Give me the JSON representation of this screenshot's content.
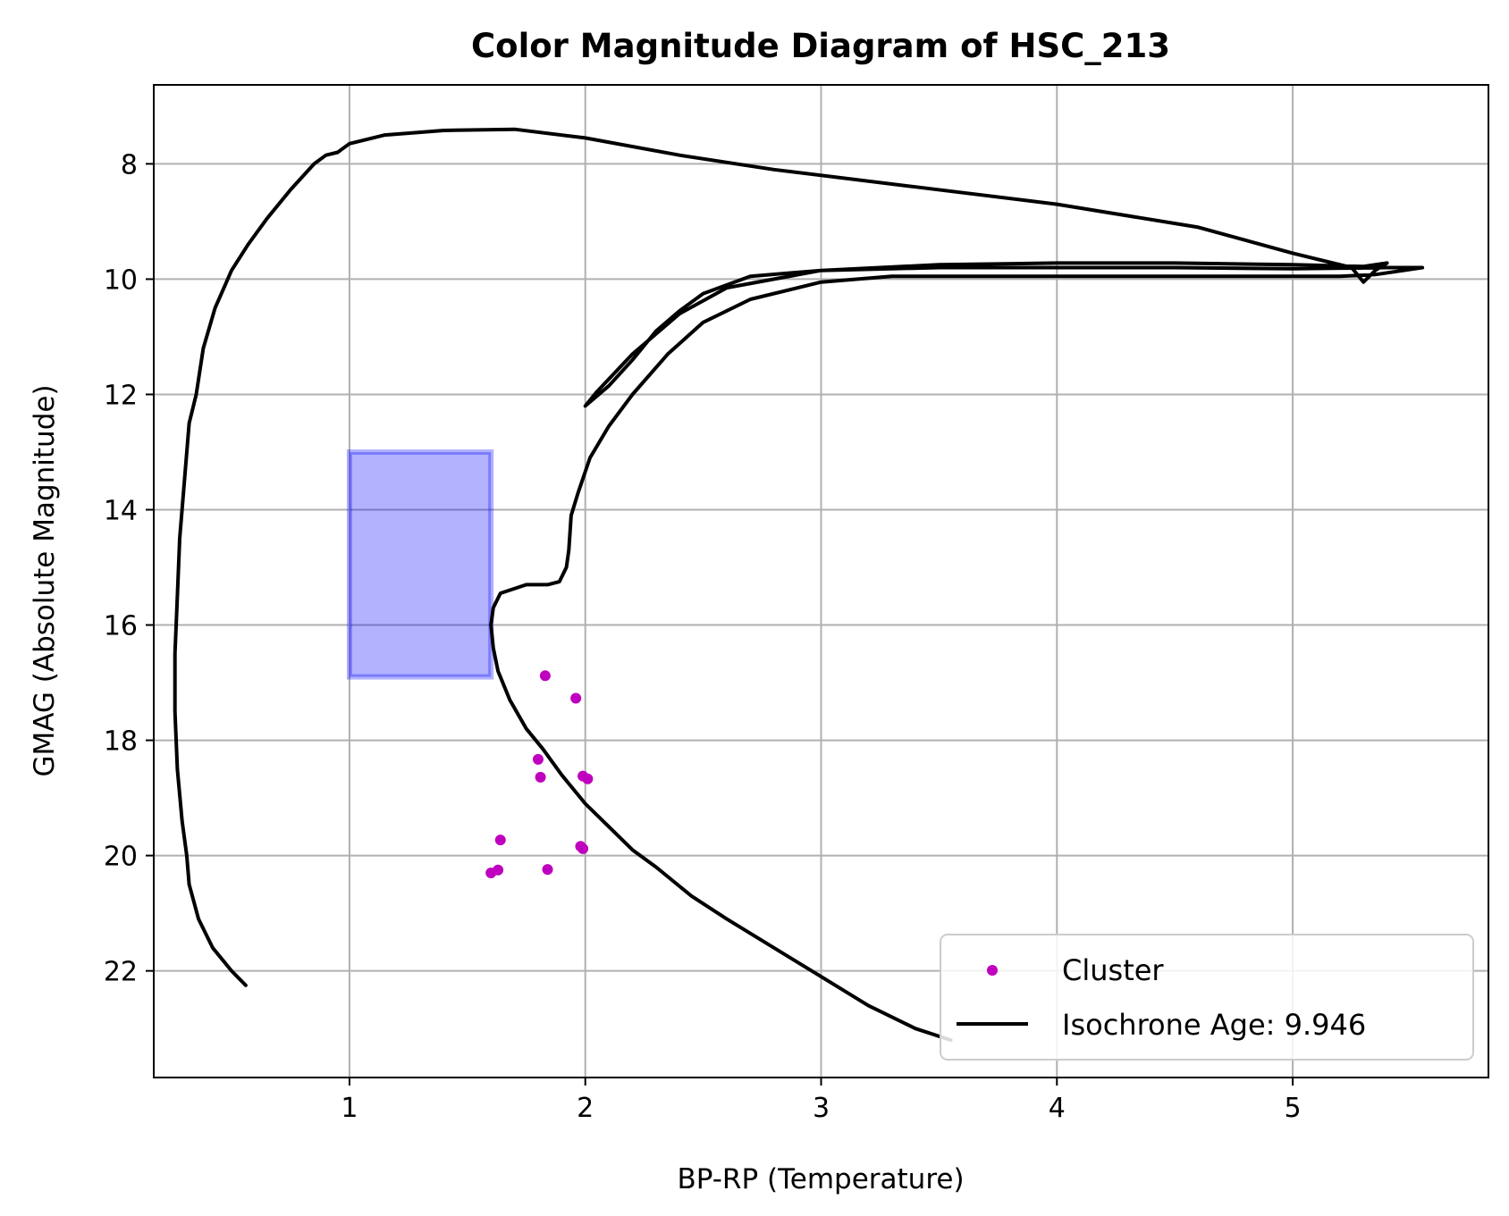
{
  "chart_data": {
    "type": "scatter",
    "title": "Color Magnitude Diagram of HSC_213",
    "xlabel": "BP-RP (Temperature)",
    "ylabel": "GMAG (Absolute Magnitude)",
    "xlim": [
      0.17,
      5.83
    ],
    "ylim": [
      23.85,
      6.63
    ],
    "y_inverted": true,
    "grid": true,
    "x_ticks": [
      1,
      2,
      3,
      4,
      5
    ],
    "y_ticks": [
      8,
      10,
      12,
      14,
      16,
      18,
      20,
      22
    ],
    "legend_position": "lower right",
    "legend": [
      {
        "label": "Cluster",
        "marker": "dot",
        "color": "#bf00bf"
      },
      {
        "label": "Isochrone Age: 9.946",
        "marker": "line",
        "color": "#000000"
      }
    ],
    "highlight_region": {
      "x_range": [
        1.0,
        1.6
      ],
      "y_range": [
        13.0,
        16.9
      ],
      "color": "#0000ff",
      "opacity": 0.3
    },
    "series": [
      {
        "name": "Cluster",
        "kind": "scatter",
        "color": "#bf00bf",
        "points": [
          [
            1.83,
            16.88
          ],
          [
            1.96,
            17.27
          ],
          [
            1.8,
            18.33
          ],
          [
            1.81,
            18.64
          ],
          [
            1.99,
            18.62
          ],
          [
            2.01,
            18.67
          ],
          [
            1.64,
            19.73
          ],
          [
            1.98,
            19.84
          ],
          [
            1.99,
            19.88
          ],
          [
            1.63,
            20.25
          ],
          [
            1.6,
            20.3
          ],
          [
            1.84,
            20.24
          ]
        ]
      },
      {
        "name": "Isochrone Age: 9.946",
        "kind": "line",
        "color": "#000000",
        "points": [
          [
            3.55,
            23.2
          ],
          [
            3.4,
            23.0
          ],
          [
            3.2,
            22.6
          ],
          [
            3.0,
            22.1
          ],
          [
            2.8,
            21.6
          ],
          [
            2.6,
            21.1
          ],
          [
            2.45,
            20.7
          ],
          [
            2.3,
            20.2
          ],
          [
            2.2,
            19.9
          ],
          [
            2.1,
            19.5
          ],
          [
            2.0,
            19.1
          ],
          [
            1.9,
            18.6
          ],
          [
            1.82,
            18.15
          ],
          [
            1.75,
            17.8
          ],
          [
            1.68,
            17.3
          ],
          [
            1.63,
            16.8
          ],
          [
            1.61,
            16.4
          ],
          [
            1.6,
            16.0
          ],
          [
            1.61,
            15.7
          ],
          [
            1.64,
            15.45
          ],
          [
            1.75,
            15.3
          ],
          [
            1.84,
            15.3
          ],
          [
            1.89,
            15.25
          ],
          [
            1.92,
            15.0
          ],
          [
            1.93,
            14.7
          ],
          [
            1.94,
            14.1
          ],
          [
            1.97,
            13.7
          ],
          [
            2.02,
            13.1
          ],
          [
            2.1,
            12.55
          ],
          [
            2.2,
            12.0
          ],
          [
            2.35,
            11.3
          ],
          [
            2.5,
            10.75
          ],
          [
            2.7,
            10.35
          ],
          [
            3.0,
            10.05
          ],
          [
            3.3,
            9.95
          ],
          [
            3.6,
            9.95
          ],
          [
            4.0,
            9.95
          ],
          [
            4.4,
            9.95
          ],
          [
            4.8,
            9.95
          ],
          [
            5.2,
            9.95
          ],
          [
            5.35,
            9.92
          ],
          [
            5.47,
            9.85
          ],
          [
            5.55,
            9.8
          ],
          [
            5.4,
            9.8
          ],
          [
            5.0,
            9.82
          ],
          [
            4.5,
            9.8
          ],
          [
            4.0,
            9.8
          ],
          [
            3.5,
            9.8
          ],
          [
            3.0,
            9.85
          ],
          [
            2.7,
            9.95
          ],
          [
            2.5,
            10.25
          ],
          [
            2.4,
            10.55
          ],
          [
            2.3,
            10.9
          ],
          [
            2.2,
            11.4
          ],
          [
            2.1,
            11.85
          ],
          [
            2.0,
            12.2
          ],
          [
            2.05,
            11.95
          ],
          [
            2.2,
            11.3
          ],
          [
            2.4,
            10.6
          ],
          [
            2.6,
            10.15
          ],
          [
            3.0,
            9.85
          ],
          [
            3.5,
            9.75
          ],
          [
            4.0,
            9.72
          ],
          [
            4.5,
            9.72
          ],
          [
            5.0,
            9.75
          ],
          [
            5.3,
            9.78
          ],
          [
            5.4,
            9.72
          ],
          [
            5.35,
            9.85
          ],
          [
            5.3,
            10.05
          ],
          [
            5.25,
            9.8
          ],
          [
            5.0,
            9.55
          ],
          [
            4.6,
            9.1
          ],
          [
            4.0,
            8.7
          ],
          [
            3.4,
            8.4
          ],
          [
            2.8,
            8.1
          ],
          [
            2.4,
            7.85
          ],
          [
            2.0,
            7.55
          ],
          [
            1.7,
            7.4
          ],
          [
            1.4,
            7.42
          ],
          [
            1.15,
            7.5
          ],
          [
            1.0,
            7.65
          ],
          [
            0.95,
            7.8
          ],
          [
            0.9,
            7.85
          ],
          [
            0.85,
            8.0
          ],
          [
            0.75,
            8.45
          ],
          [
            0.65,
            8.95
          ],
          [
            0.57,
            9.4
          ],
          [
            0.5,
            9.85
          ],
          [
            0.43,
            10.5
          ],
          [
            0.38,
            11.2
          ],
          [
            0.35,
            12.0
          ],
          [
            0.32,
            12.5
          ],
          [
            0.3,
            13.5
          ],
          [
            0.28,
            14.5
          ],
          [
            0.27,
            15.5
          ],
          [
            0.26,
            16.5
          ],
          [
            0.26,
            17.5
          ],
          [
            0.27,
            18.5
          ],
          [
            0.29,
            19.4
          ],
          [
            0.31,
            20.0
          ],
          [
            0.32,
            20.5
          ],
          [
            0.36,
            21.1
          ],
          [
            0.42,
            21.6
          ],
          [
            0.5,
            22.0
          ],
          [
            0.56,
            22.25
          ]
        ]
      }
    ]
  }
}
